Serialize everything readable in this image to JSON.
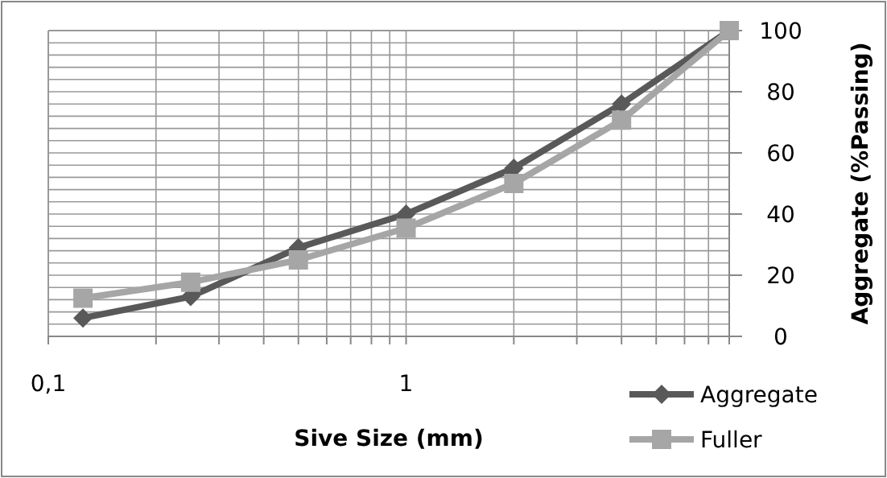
{
  "chart_data": {
    "type": "line",
    "xlabel": "Sive Size (mm)",
    "ylabel": "Aggregate (%Passing)",
    "log": "x",
    "xlim": [
      0.1,
      8
    ],
    "xticks": [
      {
        "value": 0.1,
        "label": "0,1"
      },
      {
        "value": 0.2,
        "label": null
      },
      {
        "value": 0.3,
        "label": null
      },
      {
        "value": 0.4,
        "label": null
      },
      {
        "value": 0.5,
        "label": null
      },
      {
        "value": 0.6,
        "label": null
      },
      {
        "value": 0.7,
        "label": null
      },
      {
        "value": 0.8,
        "label": null
      },
      {
        "value": 0.9,
        "label": null
      },
      1,
      {
        "value": 2,
        "label": null
      },
      {
        "value": 3,
        "label": null
      },
      {
        "value": 4,
        "label": null
      },
      {
        "value": 5,
        "label": null
      },
      {
        "value": 6,
        "label": null
      },
      {
        "value": 7,
        "label": null
      },
      {
        "value": 8,
        "label": null
      }
    ],
    "ylim": [
      0,
      100
    ],
    "yticks": [
      0,
      {
        "value": 4,
        "label": null
      },
      {
        "value": 8,
        "label": null
      },
      {
        "value": 12,
        "label": null
      },
      {
        "value": 16,
        "label": null
      },
      20,
      {
        "value": 24,
        "label": null
      },
      {
        "value": 28,
        "label": null
      },
      {
        "value": 32,
        "label": null
      },
      {
        "value": 36,
        "label": null
      },
      40,
      {
        "value": 44,
        "label": null
      },
      {
        "value": 48,
        "label": null
      },
      {
        "value": 52,
        "label": null
      },
      {
        "value": 56,
        "label": null
      },
      60,
      {
        "value": 64,
        "label": null
      },
      {
        "value": 68,
        "label": null
      },
      {
        "value": 72,
        "label": null
      },
      {
        "value": 76,
        "label": null
      },
      80,
      {
        "value": 84,
        "label": null
      },
      {
        "value": 88,
        "label": null
      },
      {
        "value": 92,
        "label": null
      },
      {
        "value": 96,
        "label": null
      },
      100
    ],
    "grid": true,
    "legend": "bottom right",
    "x": [
      0.125,
      0.25,
      0.5,
      1,
      2,
      4,
      8
    ],
    "series": [
      {
        "name": "Aggregate",
        "color": "#595959",
        "marker": "diamond",
        "values": [
          6,
          13,
          29,
          40,
          55,
          76,
          100
        ]
      },
      {
        "name": "Fuller",
        "color": "#a6a6a6",
        "marker": "square",
        "values": [
          12.5,
          17.7,
          25,
          35.4,
          50,
          70.7,
          100
        ]
      }
    ]
  }
}
